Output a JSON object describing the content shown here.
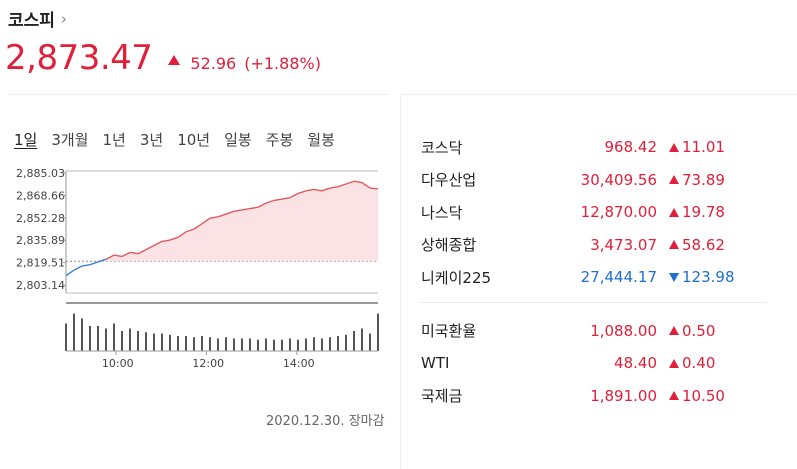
{
  "header": {
    "title": "코스피",
    "chevron": "›",
    "price": "2,873.47",
    "change": "52.96",
    "change_pct": "(+1.88%)",
    "direction_color": "#e0203a"
  },
  "tabs": [
    "1일",
    "3개월",
    "1년",
    "3년",
    "10년",
    "일봉",
    "주봉",
    "월봉"
  ],
  "active_tab": "1일",
  "chart_data": {
    "type": "area",
    "title": "",
    "yticks": [
      "2,885.03",
      "2,868.66",
      "2,852.28",
      "2,835.89",
      "2,819.51",
      "2,803.14"
    ],
    "ylim": [
      2803.14,
      2885.03
    ],
    "xticks": [
      "10:00",
      "12:00",
      "14:00"
    ],
    "reference_value": 2820.51,
    "x": [
      "09:00",
      "09:10",
      "09:20",
      "09:30",
      "09:40",
      "09:50",
      "10:00",
      "10:10",
      "10:20",
      "10:30",
      "10:40",
      "10:50",
      "11:00",
      "11:10",
      "11:20",
      "11:30",
      "11:40",
      "11:50",
      "12:00",
      "12:10",
      "12:20",
      "12:30",
      "12:40",
      "12:50",
      "13:00",
      "13:10",
      "13:20",
      "13:30",
      "13:40",
      "13:50",
      "14:00",
      "14:10",
      "14:20",
      "14:30",
      "14:40",
      "14:50",
      "15:00",
      "15:10",
      "15:20",
      "15:30"
    ],
    "values": [
      2810,
      2814,
      2817,
      2818,
      2820,
      2822,
      2825,
      2824,
      2827,
      2826,
      2829,
      2832,
      2835,
      2836,
      2838,
      2842,
      2844,
      2848,
      2852,
      2853,
      2855,
      2857,
      2858,
      2859,
      2860,
      2863,
      2865,
      2866,
      2867,
      2870,
      2872,
      2873,
      2872,
      2874,
      2875,
      2877,
      2879,
      2878,
      2874,
      2873.47
    ],
    "area_color": "#fbe3e5",
    "up_line_color": "#e05a5a",
    "down_line_color": "#3b7fe0",
    "volume": [
      22,
      30,
      26,
      20,
      20,
      18,
      22,
      16,
      18,
      16,
      15,
      14,
      14,
      13,
      12,
      12,
      11,
      12,
      11,
      10,
      11,
      10,
      10,
      10,
      9,
      10,
      9,
      9,
      10,
      9,
      10,
      11,
      10,
      11,
      12,
      13,
      16,
      18,
      14,
      30
    ]
  },
  "date_note": "2020.12.30. 장마감",
  "markets": [
    {
      "name": "코스닥",
      "value": "968.42",
      "change": "11.01",
      "dir": "up"
    },
    {
      "name": "다우산업",
      "value": "30,409.56",
      "change": "73.89",
      "dir": "up"
    },
    {
      "name": "나스닥",
      "value": "12,870.00",
      "change": "19.78",
      "dir": "up"
    },
    {
      "name": "상해종합",
      "value": "3,473.07",
      "change": "58.62",
      "dir": "up"
    },
    {
      "name": "니케이225",
      "value": "27,444.17",
      "change": "123.98",
      "dir": "down"
    }
  ],
  "others": [
    {
      "name": "미국환율",
      "value": "1,088.00",
      "change": "0.50",
      "dir": "up"
    },
    {
      "name": "WTI",
      "value": "48.40",
      "change": "0.40",
      "dir": "up"
    },
    {
      "name": "국제금",
      "value": "1,891.00",
      "change": "10.50",
      "dir": "up"
    }
  ]
}
